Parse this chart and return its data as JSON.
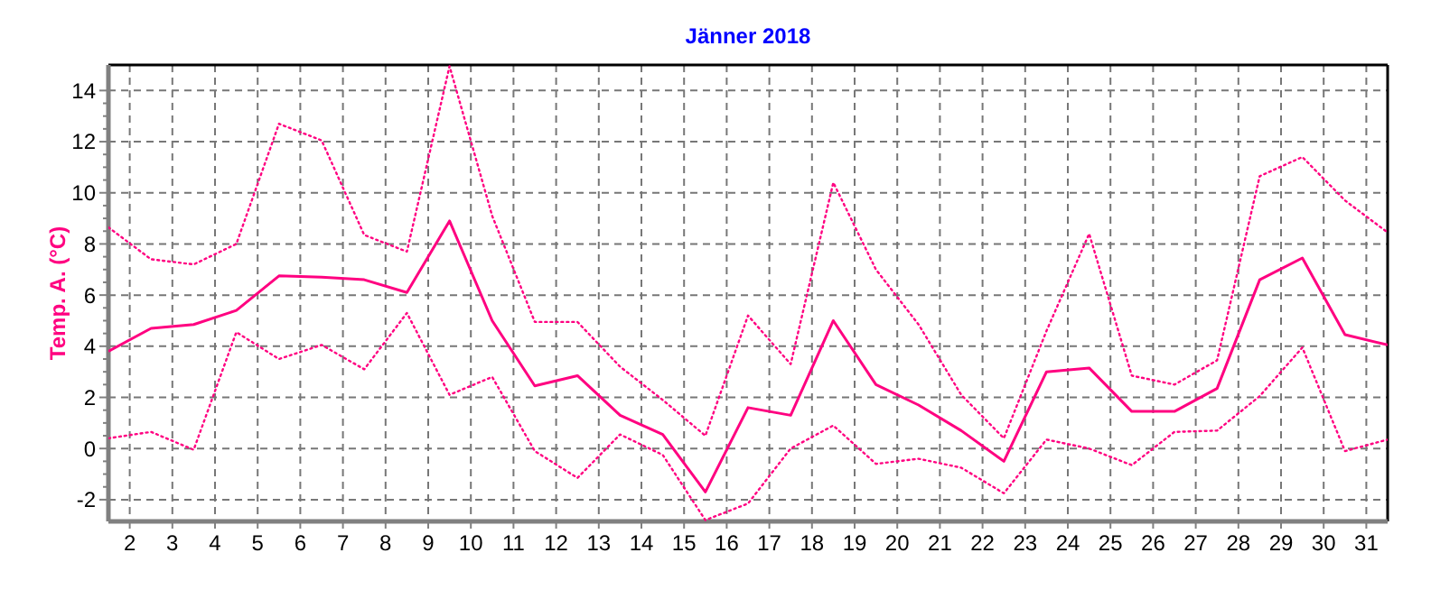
{
  "chart_data": {
    "type": "line",
    "title": "Jänner 2018",
    "ylabel": "Temp. A. (°C)",
    "x": [
      1.5,
      2.5,
      3.5,
      4.5,
      5.5,
      6.5,
      7.5,
      8.5,
      9.5,
      10.5,
      11.5,
      12.5,
      13.5,
      14.5,
      15.5,
      16.5,
      17.5,
      18.5,
      19.5,
      20.5,
      21.5,
      22.5,
      23.5,
      24.5,
      25.5,
      26.5,
      27.5,
      28.5,
      29.5,
      30.5,
      31.5
    ],
    "series": [
      {
        "color": "#ff0080",
        "line_style": "dotted",
        "values": [
          8.65,
          7.4,
          7.2,
          8.0,
          12.7,
          12.05,
          8.35,
          7.7,
          14.95,
          9.1,
          4.95,
          4.95,
          3.2,
          1.9,
          0.5,
          5.2,
          3.3,
          10.4,
          7.0,
          4.85,
          2.1,
          0.4,
          4.6,
          8.4,
          2.85,
          2.5,
          3.45,
          10.65,
          11.4,
          9.7,
          8.45
        ]
      },
      {
        "color": "#ff0080",
        "line_style": "solid",
        "values": [
          3.8,
          4.7,
          4.85,
          5.4,
          6.75,
          6.7,
          6.6,
          6.1,
          8.9,
          5.0,
          2.45,
          2.85,
          1.3,
          0.55,
          -1.7,
          1.6,
          1.3,
          5.0,
          2.5,
          1.7,
          0.7,
          -0.5,
          3.0,
          3.15,
          1.45,
          1.45,
          2.35,
          6.6,
          7.45,
          4.45,
          4.05
        ]
      },
      {
        "color": "#ff0080",
        "line_style": "dotted",
        "values": [
          0.4,
          0.65,
          -0.05,
          4.55,
          3.5,
          4.05,
          3.1,
          5.3,
          2.1,
          2.8,
          -0.1,
          -1.15,
          0.55,
          -0.25,
          -2.8,
          -2.15,
          0.0,
          0.9,
          -0.6,
          -0.4,
          -0.75,
          -1.75,
          0.35,
          0.0,
          -0.65,
          0.65,
          0.7,
          2.05,
          3.95,
          -0.1,
          0.35
        ]
      }
    ],
    "xlim": [
      1.5,
      31.5
    ],
    "xticks": [
      2,
      3,
      4,
      5,
      6,
      7,
      8,
      9,
      10,
      11,
      12,
      13,
      14,
      15,
      16,
      17,
      18,
      19,
      20,
      21,
      22,
      23,
      24,
      25,
      26,
      27,
      28,
      29,
      30,
      31
    ],
    "ylim": [
      -2.85,
      15
    ],
    "yticks": [
      -2,
      0,
      2,
      4,
      6,
      8,
      10,
      12,
      14
    ],
    "grid": true,
    "marker": "none"
  }
}
